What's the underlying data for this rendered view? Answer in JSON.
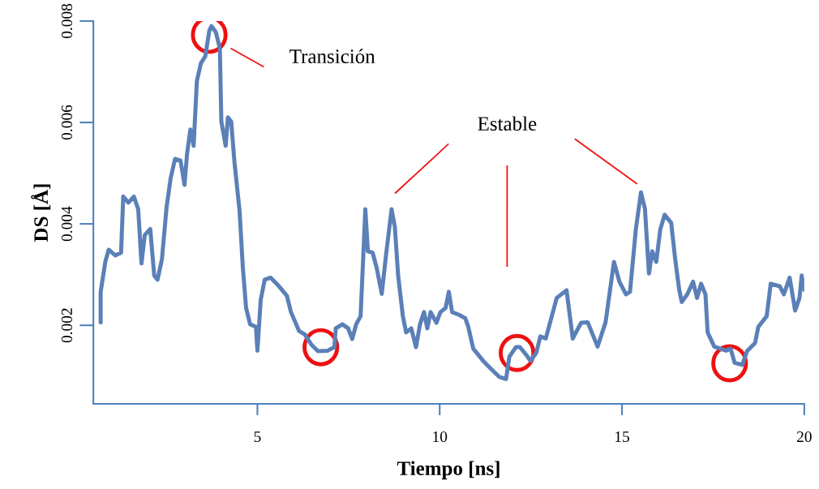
{
  "chart_data": {
    "type": "line",
    "xlabel": "Tiempo [ns]",
    "ylabel": "DS [Å]",
    "xlim": [
      0.5,
      20
    ],
    "xticks": [
      5,
      10,
      15,
      20
    ],
    "ylim": [
      0.00045,
      0.008
    ],
    "yticks": [
      0.002,
      0.004,
      0.006,
      0.008
    ],
    "x": [
      0.7,
      0.7,
      0.83,
      0.92,
      1.1,
      1.26,
      1.32,
      1.46,
      1.61,
      1.73,
      1.82,
      1.91,
      2.06,
      2.17,
      2.26,
      2.38,
      2.51,
      2.62,
      2.74,
      2.89,
      3.0,
      3.07,
      3.16,
      3.25,
      3.34,
      3.45,
      3.57,
      3.68,
      3.74,
      3.86,
      3.97,
      4.01,
      4.13,
      4.19,
      4.28,
      4.37,
      4.51,
      4.6,
      4.69,
      4.8,
      4.96,
      5.0,
      5.09,
      5.2,
      5.36,
      5.58,
      5.81,
      5.92,
      6.14,
      6.3,
      6.48,
      6.66,
      6.93,
      7.11,
      7.15,
      7.33,
      7.49,
      7.6,
      7.71,
      7.83,
      7.89,
      7.96,
      8.03,
      8.16,
      8.27,
      8.41,
      8.54,
      8.68,
      8.77,
      8.86,
      8.99,
      9.08,
      9.22,
      9.35,
      9.46,
      9.57,
      9.66,
      9.75,
      9.91,
      10.02,
      10.16,
      10.25,
      10.34,
      10.52,
      10.7,
      10.78,
      10.92,
      11.19,
      11.41,
      11.64,
      11.82,
      11.91,
      12.09,
      12.2,
      12.38,
      12.49,
      12.65,
      12.76,
      12.91,
      13.21,
      13.48,
      13.65,
      13.88,
      14.06,
      14.33,
      14.55,
      14.78,
      14.93,
      15.11,
      15.22,
      15.38,
      15.52,
      15.63,
      15.74,
      15.83,
      15.94,
      16.05,
      16.17,
      16.35,
      16.46,
      16.57,
      16.64,
      16.79,
      16.95,
      17.06,
      17.17,
      17.29,
      17.35,
      17.53,
      17.85,
      17.98,
      18.09,
      18.3,
      18.43,
      18.65,
      18.74,
      18.97,
      19.08,
      19.33,
      19.44,
      19.6,
      19.75,
      19.87,
      19.93,
      20.0
    ],
    "series": [
      {
        "color": "#5b80b8",
        "values": [
          0.00206,
          0.00266,
          0.00326,
          0.00349,
          0.00338,
          0.00343,
          0.00454,
          0.00442,
          0.00454,
          0.00429,
          0.00322,
          0.00378,
          0.0039,
          0.00298,
          0.0029,
          0.0033,
          0.00434,
          0.0049,
          0.00528,
          0.00525,
          0.00477,
          0.00538,
          0.00586,
          0.00554,
          0.00682,
          0.00717,
          0.0073,
          0.00781,
          0.0079,
          0.00778,
          0.00746,
          0.00602,
          0.00554,
          0.0061,
          0.00602,
          0.00522,
          0.00426,
          0.00314,
          0.00234,
          0.00202,
          0.00197,
          0.0015,
          0.0025,
          0.0029,
          0.00294,
          0.00278,
          0.00258,
          0.00226,
          0.00189,
          0.00182,
          0.00162,
          0.00149,
          0.0015,
          0.00157,
          0.00194,
          0.00202,
          0.00194,
          0.00173,
          0.00202,
          0.00218,
          0.00314,
          0.00429,
          0.00346,
          0.00343,
          0.00314,
          0.00262,
          0.00346,
          0.00429,
          0.00394,
          0.00298,
          0.00218,
          0.00186,
          0.00194,
          0.00157,
          0.00202,
          0.00226,
          0.00194,
          0.00226,
          0.00205,
          0.00226,
          0.00234,
          0.00266,
          0.00226,
          0.00221,
          0.00214,
          0.00198,
          0.00154,
          0.0013,
          0.00114,
          0.00098,
          0.00094,
          0.00138,
          0.00157,
          0.00157,
          0.00141,
          0.0013,
          0.00146,
          0.00178,
          0.00174,
          0.00254,
          0.00269,
          0.00174,
          0.00205,
          0.00206,
          0.00158,
          0.00206,
          0.00325,
          0.00286,
          0.00261,
          0.00266,
          0.00389,
          0.00462,
          0.0043,
          0.00302,
          0.00346,
          0.00325,
          0.00389,
          0.00418,
          0.00402,
          0.0033,
          0.0027,
          0.00246,
          0.00261,
          0.00286,
          0.00254,
          0.00282,
          0.00261,
          0.00186,
          0.00158,
          0.0015,
          0.00154,
          0.00126,
          0.00122,
          0.00149,
          0.00165,
          0.00197,
          0.00218,
          0.00282,
          0.00277,
          0.00261,
          0.00294,
          0.00229,
          0.00254,
          0.00298,
          0.0027
        ]
      }
    ],
    "annotations": [
      "Transición",
      "Estable"
    ],
    "grid": false,
    "legend": false
  }
}
